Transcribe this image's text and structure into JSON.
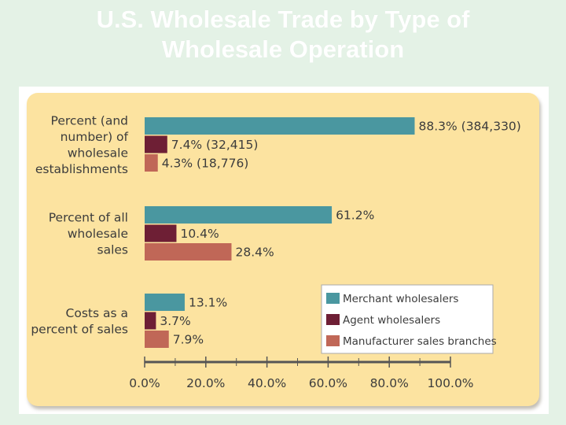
{
  "slide": {
    "title_line1": "U.S. Wholesale Trade by Type of",
    "title_line2": "Wholesale Operation"
  },
  "colors": {
    "background": "#e4f2e6",
    "panel": "#fce3a0",
    "merchant": "#4a97a0",
    "agent": "#6e1f35",
    "manufacturer": "#c06757",
    "axis": "#555555"
  },
  "chart_data": {
    "type": "bar",
    "orientation": "horizontal",
    "xlim": [
      0,
      100
    ],
    "x_ticks": [
      "0.0%",
      "20.0%",
      "40.0%",
      "60.0%",
      "80.0%",
      "100.0%"
    ],
    "grid": false,
    "legend_position": "bottom-right",
    "categories": [
      {
        "label_lines": [
          "Percent (and",
          "number) of",
          "wholesale",
          "establishments"
        ]
      },
      {
        "label_lines": [
          "Percent of all",
          "wholesale",
          "sales"
        ]
      },
      {
        "label_lines": [
          "Costs as a",
          "percent of sales"
        ]
      }
    ],
    "series": [
      {
        "name": "Merchant wholesalers",
        "color": "#4a97a0",
        "values": [
          88.3,
          61.2,
          13.1
        ],
        "labels": [
          "88.3% (384,330)",
          "61.2%",
          "13.1%"
        ]
      },
      {
        "name": "Agent wholesalers",
        "color": "#6e1f35",
        "values": [
          7.4,
          10.4,
          3.7
        ],
        "labels": [
          "7.4% (32,415)",
          "10.4%",
          "3.7%"
        ]
      },
      {
        "name": "Manufacturer sales branches",
        "color": "#c06757",
        "values": [
          4.3,
          28.4,
          7.9
        ],
        "labels": [
          "4.3% (18,776)",
          "28.4%",
          "7.9%"
        ]
      }
    ]
  }
}
